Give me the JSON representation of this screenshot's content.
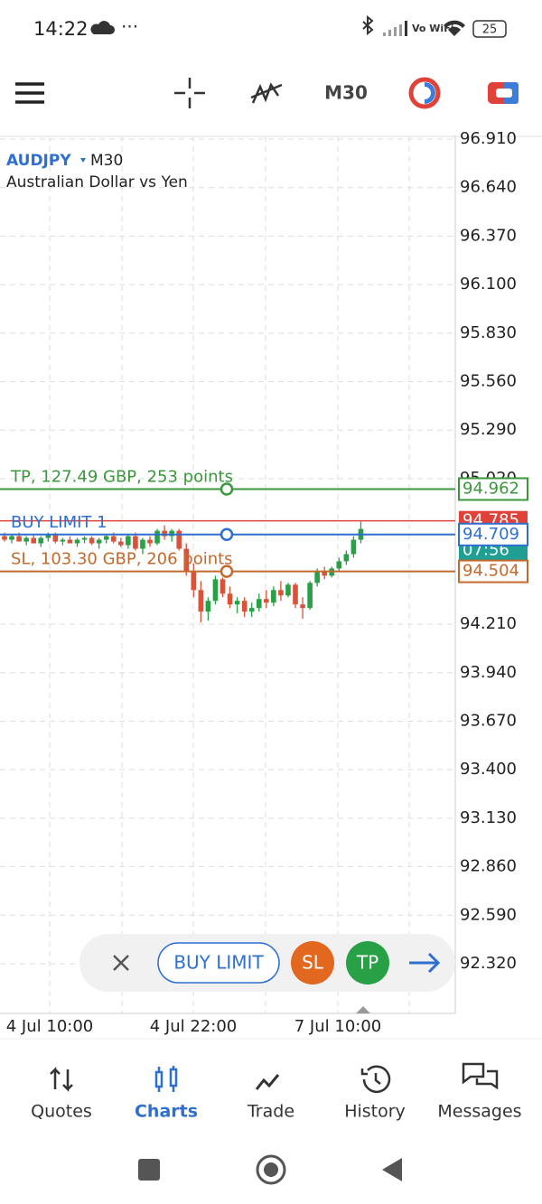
{
  "status_bar": {
    "time": "14:22",
    "network": "Vo WiFi",
    "battery": "25"
  },
  "toolbar": {
    "timeframe": "M30"
  },
  "chart": {
    "symbol": "AUDJPY",
    "timeframe": "M30",
    "description": "Australian Dollar vs Yen",
    "ylim": [
      92.32,
      96.91
    ],
    "yticks": [
      {
        "value": 96.91,
        "label": "96.910"
      },
      {
        "value": 96.64,
        "label": "96.640"
      },
      {
        "value": 96.37,
        "label": "96.370"
      },
      {
        "value": 96.1,
        "label": "96.100"
      },
      {
        "value": 95.83,
        "label": "95.830"
      },
      {
        "value": 95.56,
        "label": "95.560"
      },
      {
        "value": 95.29,
        "label": "95.290"
      },
      {
        "value": 95.02,
        "label": "95.020"
      },
      {
        "value": 94.21,
        "label": "94.210"
      },
      {
        "value": 93.94,
        "label": "93.940"
      },
      {
        "value": 93.67,
        "label": "93.670"
      },
      {
        "value": 93.4,
        "label": "93.400"
      },
      {
        "value": 93.13,
        "label": "93.130"
      },
      {
        "value": 92.86,
        "label": "92.860"
      },
      {
        "value": 92.59,
        "label": "92.590"
      },
      {
        "value": 92.32,
        "label": "92.320"
      }
    ],
    "x_labels": [
      "4 Jul 10:00",
      "4 Jul 22:00",
      "7 Jul 10:00"
    ],
    "current_price": 94.785,
    "bar_timer": "07:56",
    "levels": [
      {
        "label": "TP, 127.49 GBP, 253 points",
        "price": 94.962,
        "color": "#3b973b"
      },
      {
        "label": "BUY LIMIT 1",
        "price": 94.709,
        "color": "#2f6fd0"
      },
      {
        "label": "SL, 103.30 GBP, 206 points",
        "price": 94.504,
        "color": "#c4692c"
      }
    ],
    "candles": [
      [
        94.7,
        94.72,
        94.67,
        94.68
      ],
      [
        94.68,
        94.71,
        94.66,
        94.7
      ],
      [
        94.7,
        94.72,
        94.67,
        94.67
      ],
      [
        94.67,
        94.7,
        94.65,
        94.69
      ],
      [
        94.69,
        94.71,
        94.66,
        94.66
      ],
      [
        94.66,
        94.7,
        94.64,
        94.69
      ],
      [
        94.69,
        94.72,
        94.67,
        94.71
      ],
      [
        94.71,
        94.72,
        94.66,
        94.67
      ],
      [
        94.67,
        94.69,
        94.65,
        94.68
      ],
      [
        94.68,
        94.7,
        94.66,
        94.66
      ],
      [
        94.66,
        94.69,
        94.64,
        94.68
      ],
      [
        94.68,
        94.7,
        94.66,
        94.69
      ],
      [
        94.69,
        94.7,
        94.65,
        94.66
      ],
      [
        94.66,
        94.69,
        94.63,
        94.68
      ],
      [
        94.68,
        94.71,
        94.66,
        94.7
      ],
      [
        94.7,
        94.72,
        94.66,
        94.67
      ],
      [
        94.67,
        94.69,
        94.64,
        94.65
      ],
      [
        94.65,
        94.71,
        94.63,
        94.7
      ],
      [
        94.7,
        94.72,
        94.62,
        94.63
      ],
      [
        94.63,
        94.69,
        94.6,
        94.68
      ],
      [
        94.68,
        94.7,
        94.64,
        94.66
      ],
      [
        94.66,
        94.74,
        94.65,
        94.73
      ],
      [
        94.73,
        94.76,
        94.68,
        94.7
      ],
      [
        94.7,
        94.74,
        94.67,
        94.73
      ],
      [
        94.73,
        94.74,
        94.62,
        94.63
      ],
      [
        94.63,
        94.66,
        94.48,
        94.5
      ],
      [
        94.5,
        94.55,
        94.36,
        94.4
      ],
      [
        94.4,
        94.45,
        94.22,
        94.28
      ],
      [
        94.28,
        94.36,
        94.23,
        94.34
      ],
      [
        94.34,
        94.48,
        94.32,
        94.46
      ],
      [
        94.46,
        94.47,
        94.36,
        94.38
      ],
      [
        94.38,
        94.42,
        94.3,
        94.32
      ],
      [
        94.32,
        94.36,
        94.27,
        94.34
      ],
      [
        94.34,
        94.36,
        94.25,
        94.28
      ],
      [
        94.28,
        94.33,
        94.25,
        94.3
      ],
      [
        94.3,
        94.38,
        94.28,
        94.35
      ],
      [
        94.35,
        94.4,
        94.3,
        94.33
      ],
      [
        94.33,
        94.42,
        94.31,
        94.4
      ],
      [
        94.4,
        94.45,
        94.34,
        94.37
      ],
      [
        94.37,
        94.44,
        94.36,
        94.43
      ],
      [
        94.43,
        94.44,
        94.3,
        94.32
      ],
      [
        94.32,
        94.36,
        94.24,
        94.3
      ],
      [
        94.3,
        94.45,
        94.29,
        94.44
      ],
      [
        94.44,
        94.52,
        94.42,
        94.5
      ],
      [
        94.5,
        94.53,
        94.46,
        94.48
      ],
      [
        94.48,
        94.53,
        94.47,
        94.52
      ],
      [
        94.52,
        94.58,
        94.5,
        94.56
      ],
      [
        94.56,
        94.62,
        94.54,
        94.6
      ],
      [
        94.6,
        94.7,
        94.58,
        94.68
      ],
      [
        94.68,
        94.78,
        94.66,
        94.74
      ]
    ]
  },
  "order_bar": {
    "order_type": "BUY LIMIT",
    "sl": "SL",
    "tp": "TP"
  },
  "nav": [
    "Quotes",
    "Charts",
    "Trade",
    "History",
    "Messages"
  ]
}
